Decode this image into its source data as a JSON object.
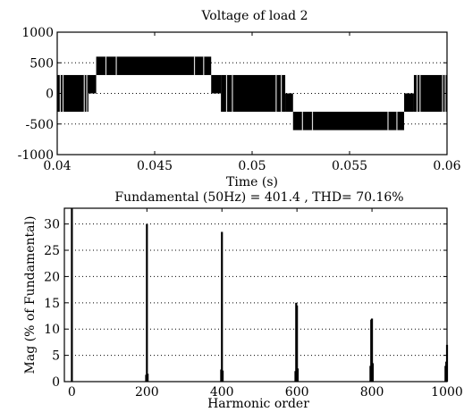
{
  "chart_data": [
    {
      "type": "line",
      "title": "Voltage of load 2",
      "xlabel": "Time (s)",
      "ylabel": "",
      "xlim": [
        0.04,
        0.06
      ],
      "ylim": [
        -1000,
        1000
      ],
      "xticks": [
        0.04,
        0.045,
        0.05,
        0.055,
        0.06
      ],
      "xtick_labels": [
        "0.04",
        "0.045",
        "0.05",
        "0.055",
        "0.06"
      ],
      "yticks": [
        -1000,
        -500,
        0,
        500,
        1000
      ],
      "ytick_labels": [
        "-1000",
        "-500",
        "0",
        "500",
        "1000"
      ],
      "grid": "horizontal dotted",
      "series": [
        {
          "style": "multilevel PWM (switching between adjacent voltage levels)",
          "segments": [
            {
              "t0": 0.04,
              "t1": 0.0416,
              "low": -300,
              "high": 300
            },
            {
              "t0": 0.0416,
              "t1": 0.042,
              "low": 0,
              "high": 300
            },
            {
              "t0": 0.042,
              "t1": 0.0479,
              "low": 300,
              "high": 600
            },
            {
              "t0": 0.0479,
              "t1": 0.0484,
              "low": 0,
              "high": 300
            },
            {
              "t0": 0.0484,
              "t1": 0.0517,
              "low": -300,
              "high": 300
            },
            {
              "t0": 0.0517,
              "t1": 0.0521,
              "low": -300,
              "high": 0
            },
            {
              "t0": 0.0521,
              "t1": 0.0578,
              "low": -600,
              "high": -300
            },
            {
              "t0": 0.0578,
              "t1": 0.0583,
              "low": -300,
              "high": 0
            },
            {
              "t0": 0.0583,
              "t1": 0.06,
              "low": -300,
              "high": 300
            }
          ]
        }
      ]
    },
    {
      "type": "bar",
      "title": "Fundamental (50Hz) = 401.4 , THD= 70.16%",
      "xlabel": "Harmonic order",
      "ylabel": "Mag (% of Fundamental)",
      "xlim": [
        -20,
        1000
      ],
      "ylim": [
        0,
        33
      ],
      "xticks": [
        0,
        200,
        400,
        600,
        800,
        1000
      ],
      "xtick_labels": [
        "0",
        "200",
        "400",
        "600",
        "800",
        "1000"
      ],
      "yticks": [
        0,
        5,
        10,
        15,
        20,
        25,
        30
      ],
      "ytick_labels": [
        "0",
        "5",
        "10",
        "15",
        "20",
        "25",
        "30"
      ],
      "grid": "horizontal dotted",
      "bars": [
        {
          "x": 0,
          "value": 33
        },
        {
          "x": 198,
          "value": 1.3
        },
        {
          "x": 200,
          "value": 30
        },
        {
          "x": 202,
          "value": 1.5
        },
        {
          "x": 398,
          "value": 2.3
        },
        {
          "x": 400,
          "value": 28.5
        },
        {
          "x": 402,
          "value": 2.1
        },
        {
          "x": 596,
          "value": 2.0
        },
        {
          "x": 598,
          "value": 15
        },
        {
          "x": 600,
          "value": 14.5
        },
        {
          "x": 602,
          "value": 2.5
        },
        {
          "x": 796,
          "value": 3.0
        },
        {
          "x": 798,
          "value": 11.8
        },
        {
          "x": 800,
          "value": 12.0
        },
        {
          "x": 802,
          "value": 3.5
        },
        {
          "x": 996,
          "value": 3.0
        },
        {
          "x": 998,
          "value": 3.8
        },
        {
          "x": 1000,
          "value": 7.0
        }
      ]
    }
  ]
}
